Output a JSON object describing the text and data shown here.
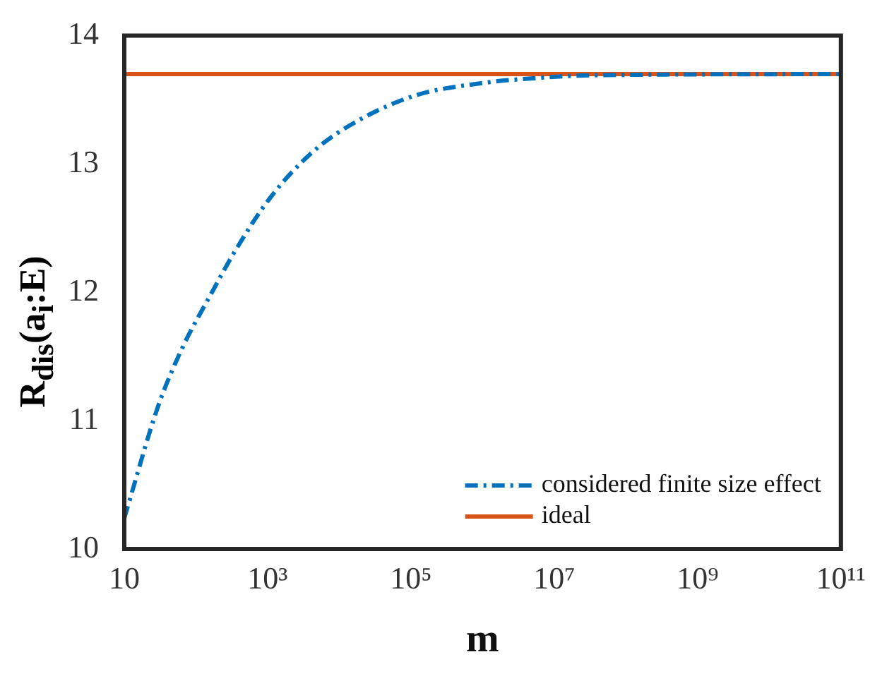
{
  "chart_data": {
    "type": "line",
    "xlabel": "m",
    "ylabel": "R$_{dis}$(a$_{i}$:E)",
    "log": "x",
    "xlim": [
      10,
      100000000000
    ],
    "xticks": [
      10,
      {
        "value": 1000,
        "label": "10³"
      },
      {
        "value": 100000,
        "label": "10⁵"
      },
      {
        "value": 10000000,
        "label": "10⁷"
      },
      {
        "value": 1000000000,
        "label": "10⁹"
      },
      {
        "value": 100000000000,
        "label": "10¹¹"
      }
    ],
    "ylim": [
      10,
      14
    ],
    "yticks": [
      10,
      11,
      12,
      13,
      14
    ],
    "grid": false,
    "legend": "bottom right",
    "marker": "none",
    "series": [
      {
        "name": "considered finite size effect",
        "color": "#0072bd",
        "line_style": "dashed",
        "x": [
          10,
          30,
          65,
          160,
          350,
          1100,
          4000,
          14000,
          110000,
          1000000,
          6000000,
          30000000,
          100000000000
        ],
        "values": [
          10.24,
          11.12,
          11.57,
          11.98,
          12.32,
          12.74,
          13.08,
          13.3,
          13.53,
          13.63,
          13.67,
          13.69,
          13.7
        ]
      },
      {
        "name": "ideal",
        "color": "#d95319",
        "line_style": "solid",
        "x": [
          10,
          100000000000
        ],
        "values": [
          13.7,
          13.7
        ]
      }
    ]
  }
}
